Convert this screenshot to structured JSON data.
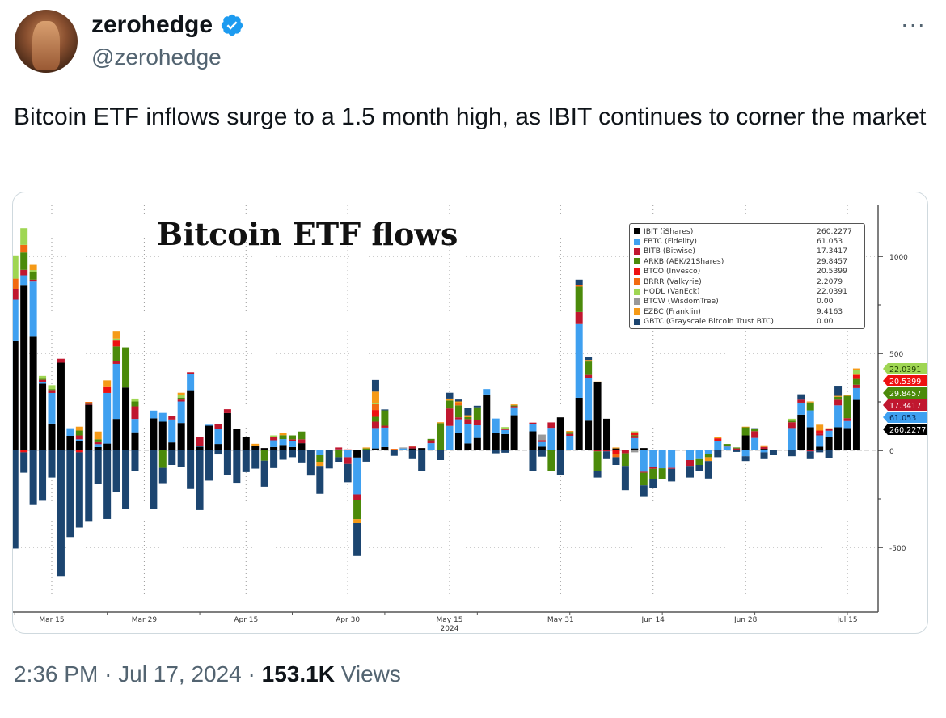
{
  "author": {
    "name": "zerohedge",
    "handle": "@zerohedge",
    "verified": true
  },
  "more_icon": "more-horizontal-icon",
  "tweet": {
    "text": "Bitcoin ETF inflows surge to a 1.5 month high, as IBIT continues to corner the market"
  },
  "meta": {
    "time": "2:36 PM",
    "date": "Jul 17, 2024",
    "views": "153.1K",
    "views_label": "Views",
    "sep": "·"
  },
  "chart_data": {
    "type": "bar",
    "stacked": true,
    "title": "Bitcoin ETF flows",
    "xlabel": "2024",
    "ylabel": "",
    "ylim": [
      -820,
      1250
    ],
    "y_axis_side": "right",
    "y_ticks": [
      1000,
      500,
      0,
      -500
    ],
    "x_ticks": [
      {
        "date": "2024-03-15",
        "label": "Mar 15"
      },
      {
        "date": "2024-03-29",
        "label": "Mar 29"
      },
      {
        "date": "2024-04-15",
        "label": "Apr 15"
      },
      {
        "date": "2024-04-30",
        "label": "Apr 30"
      },
      {
        "date": "2024-05-15",
        "label": "May 15"
      },
      {
        "date": "2024-05-31",
        "label": "May 31"
      },
      {
        "date": "2024-06-14",
        "label": "Jun 14"
      },
      {
        "date": "2024-06-28",
        "label": "Jun 28"
      },
      {
        "date": "2024-07-15",
        "label": "Jul 15"
      }
    ],
    "grid": true,
    "legend_position": "top-right",
    "x": [
      "2024-03-11",
      "2024-03-12",
      "2024-03-13",
      "2024-03-14",
      "2024-03-15",
      "2024-03-18",
      "2024-03-19",
      "2024-03-20",
      "2024-03-21",
      "2024-03-22",
      "2024-03-25",
      "2024-03-26",
      "2024-03-27",
      "2024-03-28",
      "2024-04-01",
      "2024-04-02",
      "2024-04-03",
      "2024-04-04",
      "2024-04-05",
      "2024-04-08",
      "2024-04-09",
      "2024-04-10",
      "2024-04-11",
      "2024-04-12",
      "2024-04-15",
      "2024-04-16",
      "2024-04-17",
      "2024-04-18",
      "2024-04-19",
      "2024-04-22",
      "2024-04-23",
      "2024-04-24",
      "2024-04-25",
      "2024-04-26",
      "2024-04-29",
      "2024-04-30",
      "2024-05-01",
      "2024-05-02",
      "2024-05-03",
      "2024-05-06",
      "2024-05-07",
      "2024-05-08",
      "2024-05-09",
      "2024-05-10",
      "2024-05-13",
      "2024-05-14",
      "2024-05-15",
      "2024-05-16",
      "2024-05-17",
      "2024-05-20",
      "2024-05-21",
      "2024-05-22",
      "2024-05-23",
      "2024-05-24",
      "2024-05-28",
      "2024-05-29",
      "2024-05-30",
      "2024-05-31",
      "2024-06-03",
      "2024-06-04",
      "2024-06-05",
      "2024-06-06",
      "2024-06-07",
      "2024-06-10",
      "2024-06-11",
      "2024-06-12",
      "2024-06-13",
      "2024-06-14",
      "2024-06-17",
      "2024-06-18",
      "2024-06-20",
      "2024-06-21",
      "2024-06-24",
      "2024-06-25",
      "2024-06-26",
      "2024-06-27",
      "2024-06-28",
      "2024-07-01",
      "2024-07-02",
      "2024-07-03",
      "2024-07-05",
      "2024-07-08",
      "2024-07-09",
      "2024-07-10",
      "2024-07-11",
      "2024-07-12",
      "2024-07-15",
      "2024-07-16"
    ],
    "series": [
      {
        "name": "IBIT (iShares)",
        "last": "260.2277",
        "color": "#000000",
        "values": [
          563,
          849,
          586,
          344,
          138,
          452,
          75,
          47,
          235,
          17,
          35,
          162,
          324,
          93,
          165,
          148,
          41,
          141,
          310,
          19,
          127,
          33,
          192,
          109,
          69,
          24,
          12,
          17,
          28,
          17,
          37,
          0,
          0,
          0,
          0,
          0,
          -37,
          0,
          10,
          17,
          0,
          0,
          10,
          12,
          0,
          0,
          0,
          91,
          36,
          64,
          288,
          89,
          84,
          181,
          98,
          19,
          0,
          170,
          0,
          271,
          153,
          350,
          163,
          10,
          0,
          10,
          12,
          0,
          0,
          0,
          0,
          0,
          0,
          0,
          0,
          0,
          77,
          0,
          8,
          0,
          0,
          184,
          119,
          19,
          68,
          119,
          115,
          260.2277
        ]
      },
      {
        "name": "FBTC (Fidelity)",
        "last": "61.053",
        "color": "#3fa0f0",
        "values": [
          214,
          53,
          284,
          10,
          158,
          0,
          39,
          10,
          0,
          15,
          261,
          284,
          0,
          69,
          40,
          45,
          118,
          111,
          83,
          5,
          5,
          77,
          0,
          0,
          0,
          0,
          0,
          35,
          30,
          30,
          0,
          0,
          -25,
          0,
          5,
          -35,
          -190,
          0,
          105,
          100,
          0,
          10,
          0,
          0,
          37,
          0,
          126,
          69,
          100,
          65,
          28,
          75,
          21,
          41,
          37,
          24,
          116,
          0,
          75,
          380,
          221,
          0,
          0,
          0,
          0,
          53,
          -110,
          -85,
          -92,
          -90,
          -50,
          -45,
          -20,
          47,
          20,
          0,
          -30,
          64,
          -10,
          0,
          115,
          62,
          87,
          58,
          33,
          113,
          36,
          61.053
        ]
      },
      {
        "name": "BITB (Bitwise)",
        "last": "17.3417",
        "color": "#c0172f",
        "values": [
          53,
          28,
          10,
          10,
          15,
          20,
          0,
          20,
          5,
          10,
          0,
          15,
          0,
          65,
          0,
          0,
          20,
          10,
          10,
          45,
          0,
          25,
          20,
          0,
          0,
          0,
          0,
          15,
          0,
          10,
          20,
          0,
          0,
          0,
          10,
          -35,
          -28,
          0,
          33,
          10,
          0,
          0,
          10,
          0,
          15,
          0,
          90,
          10,
          25,
          28,
          0,
          0,
          5,
          5,
          8,
          10,
          28,
          0,
          10,
          62,
          15,
          -5,
          -5,
          0,
          -15,
          10,
          -5,
          -10,
          0,
          -5,
          -30,
          0,
          0,
          0,
          5,
          10,
          0,
          35,
          10,
          0,
          30,
          15,
          -5,
          10,
          8,
          29,
          15,
          17.3417
        ]
      },
      {
        "name": "ARKB (AEK/21Shares)",
        "last": "29.8457",
        "color": "#4b8a0a",
        "values": [
          0,
          90,
          39,
          5,
          5,
          0,
          0,
          25,
          5,
          15,
          0,
          75,
          207,
          25,
          0,
          -90,
          0,
          10,
          0,
          0,
          0,
          0,
          0,
          0,
          0,
          0,
          -53,
          0,
          20,
          20,
          40,
          0,
          -35,
          0,
          -35,
          0,
          -100,
          10,
          25,
          79,
          0,
          0,
          0,
          0,
          7,
          140,
          41,
          62,
          10,
          65,
          0,
          0,
          0,
          5,
          0,
          0,
          -105,
          0,
          10,
          131,
          69,
          -100,
          0,
          0,
          -65,
          5,
          -65,
          -55,
          -55,
          0,
          0,
          -30,
          -15,
          0,
          8,
          5,
          42,
          10,
          0,
          0,
          8,
          0,
          41,
          0,
          0,
          15,
          115,
          29.8457
        ]
      },
      {
        "name": "BTCO (Invesco)",
        "last": "20.5399",
        "color": "#ee1111",
        "values": [
          0,
          -10,
          0,
          0,
          0,
          0,
          0,
          -10,
          0,
          0,
          30,
          30,
          0,
          0,
          0,
          0,
          0,
          0,
          0,
          0,
          0,
          0,
          0,
          0,
          0,
          0,
          0,
          0,
          0,
          0,
          0,
          0,
          0,
          0,
          0,
          5,
          0,
          0,
          35,
          0,
          0,
          0,
          0,
          0,
          0,
          0,
          0,
          0,
          0,
          0,
          0,
          0,
          0,
          0,
          0,
          0,
          0,
          0,
          0,
          0,
          0,
          0,
          0,
          -20,
          0,
          15,
          0,
          0,
          0,
          0,
          0,
          0,
          0,
          15,
          0,
          0,
          0,
          0,
          0,
          0,
          0,
          0,
          0,
          15,
          0,
          0,
          0,
          20.5399
        ]
      },
      {
        "name": "BRRR (Valkyrie)",
        "last": "2.2079",
        "color": "#f26a11",
        "values": [
          55,
          39,
          0,
          0,
          0,
          0,
          0,
          0,
          5,
          0,
          0,
          0,
          0,
          0,
          0,
          0,
          0,
          0,
          0,
          0,
          0,
          0,
          0,
          0,
          0,
          0,
          0,
          0,
          0,
          0,
          0,
          0,
          0,
          0,
          0,
          0,
          0,
          0,
          30,
          0,
          8,
          0,
          0,
          0,
          0,
          0,
          0,
          10,
          0,
          0,
          0,
          0,
          0,
          0,
          0,
          0,
          0,
          0,
          0,
          8,
          0,
          0,
          0,
          -15,
          0,
          0,
          0,
          0,
          0,
          0,
          0,
          0,
          0,
          0,
          0,
          0,
          0,
          0,
          0,
          0,
          0,
          0,
          0,
          0,
          0,
          0,
          0,
          2.2079
        ]
      },
      {
        "name": "HODL (VanEck)",
        "last": "22.0391",
        "color": "#9fd653",
        "values": [
          120,
          86,
          10,
          15,
          20,
          0,
          0,
          0,
          0,
          0,
          0,
          10,
          0,
          15,
          0,
          0,
          0,
          15,
          0,
          0,
          0,
          0,
          0,
          0,
          0,
          0,
          0,
          10,
          0,
          0,
          0,
          0,
          0,
          0,
          0,
          0,
          0,
          0,
          5,
          0,
          0,
          0,
          0,
          0,
          0,
          0,
          0,
          0,
          0,
          0,
          0,
          0,
          10,
          0,
          0,
          0,
          0,
          0,
          0,
          0,
          0,
          0,
          0,
          0,
          0,
          5,
          0,
          0,
          0,
          0,
          0,
          0,
          0,
          0,
          0,
          0,
          0,
          0,
          0,
          0,
          10,
          0,
          0,
          0,
          0,
          0,
          0,
          22.0391
        ]
      },
      {
        "name": "BTCW (WisdomTree)",
        "last": "0.00",
        "color": "#999999",
        "values": [
          0,
          0,
          0,
          0,
          0,
          0,
          0,
          0,
          0,
          0,
          0,
          0,
          0,
          0,
          0,
          0,
          0,
          0,
          0,
          0,
          0,
          0,
          0,
          0,
          0,
          0,
          0,
          0,
          0,
          0,
          0,
          0,
          0,
          0,
          0,
          0,
          0,
          0,
          0,
          0,
          0,
          5,
          0,
          0,
          0,
          0,
          0,
          0,
          0,
          0,
          0,
          0,
          0,
          0,
          0,
          28,
          0,
          0,
          0,
          0,
          0,
          0,
          0,
          0,
          0,
          -10,
          0,
          0,
          0,
          0,
          0,
          0,
          0,
          0,
          0,
          0,
          0,
          0,
          0,
          0,
          0,
          0,
          0,
          0,
          0,
          0,
          0,
          0
        ]
      },
      {
        "name": "EZBC (Franklin)",
        "last": "9.4163",
        "color": "#f59a17",
        "values": [
          0,
          0,
          27,
          0,
          0,
          0,
          0,
          20,
          0,
          40,
          35,
          40,
          0,
          0,
          0,
          0,
          0,
          10,
          0,
          0,
          0,
          0,
          0,
          0,
          0,
          10,
          0,
          0,
          10,
          0,
          0,
          0,
          -20,
          0,
          0,
          0,
          -20,
          5,
          60,
          0,
          0,
          0,
          5,
          0,
          0,
          5,
          10,
          10,
          10,
          0,
          0,
          0,
          0,
          5,
          0,
          0,
          0,
          0,
          5,
          0,
          8,
          5,
          0,
          5,
          0,
          0,
          0,
          0,
          0,
          0,
          0,
          0,
          -20,
          8,
          0,
          0,
          3,
          0,
          8,
          0,
          0,
          0,
          5,
          30,
          5,
          5,
          5,
          9.4163
        ]
      },
      {
        "name": "GBTC (Grayscale Bitcoin Trust BTC)",
        "last": "0.00",
        "color": "#1c4570",
        "values": [
          -506,
          -105,
          -278,
          -260,
          -140,
          -647,
          -447,
          -388,
          -364,
          -174,
          -354,
          -216,
          -302,
          -105,
          -304,
          -79,
          -75,
          -84,
          -199,
          -308,
          -156,
          -21,
          -129,
          -167,
          -112,
          -94,
          -134,
          -91,
          -48,
          -35,
          -66,
          -130,
          -144,
          -93,
          -25,
          -94,
          -170,
          -58,
          60,
          5,
          -28,
          0,
          -45,
          -108,
          0,
          -50,
          30,
          10,
          39,
          8,
          0,
          -15,
          -12,
          0,
          -108,
          -32,
          0,
          -127,
          0,
          28,
          15,
          -35,
          -40,
          -40,
          -125,
          0,
          -60,
          -45,
          0,
          -65,
          -60,
          -30,
          -90,
          -35,
          0,
          -8,
          -25,
          5,
          -35,
          -25,
          -30,
          28,
          -40,
          -10,
          -40,
          48,
          0,
          0
        ]
      }
    ],
    "value_tags": [
      {
        "series": "HODL (VanEck)",
        "label": "22.0391"
      },
      {
        "series": "BTCO (Invesco)",
        "label": "20.5399"
      },
      {
        "series": "ARKB (AEK/21Shares)",
        "label": "29.8457"
      },
      {
        "series": "BITB (Bitwise)",
        "label": "17.3417"
      },
      {
        "series": "FBTC (Fidelity)",
        "label": "61.053"
      },
      {
        "series": "IBIT (iShares)",
        "label": "260.2277"
      }
    ]
  }
}
